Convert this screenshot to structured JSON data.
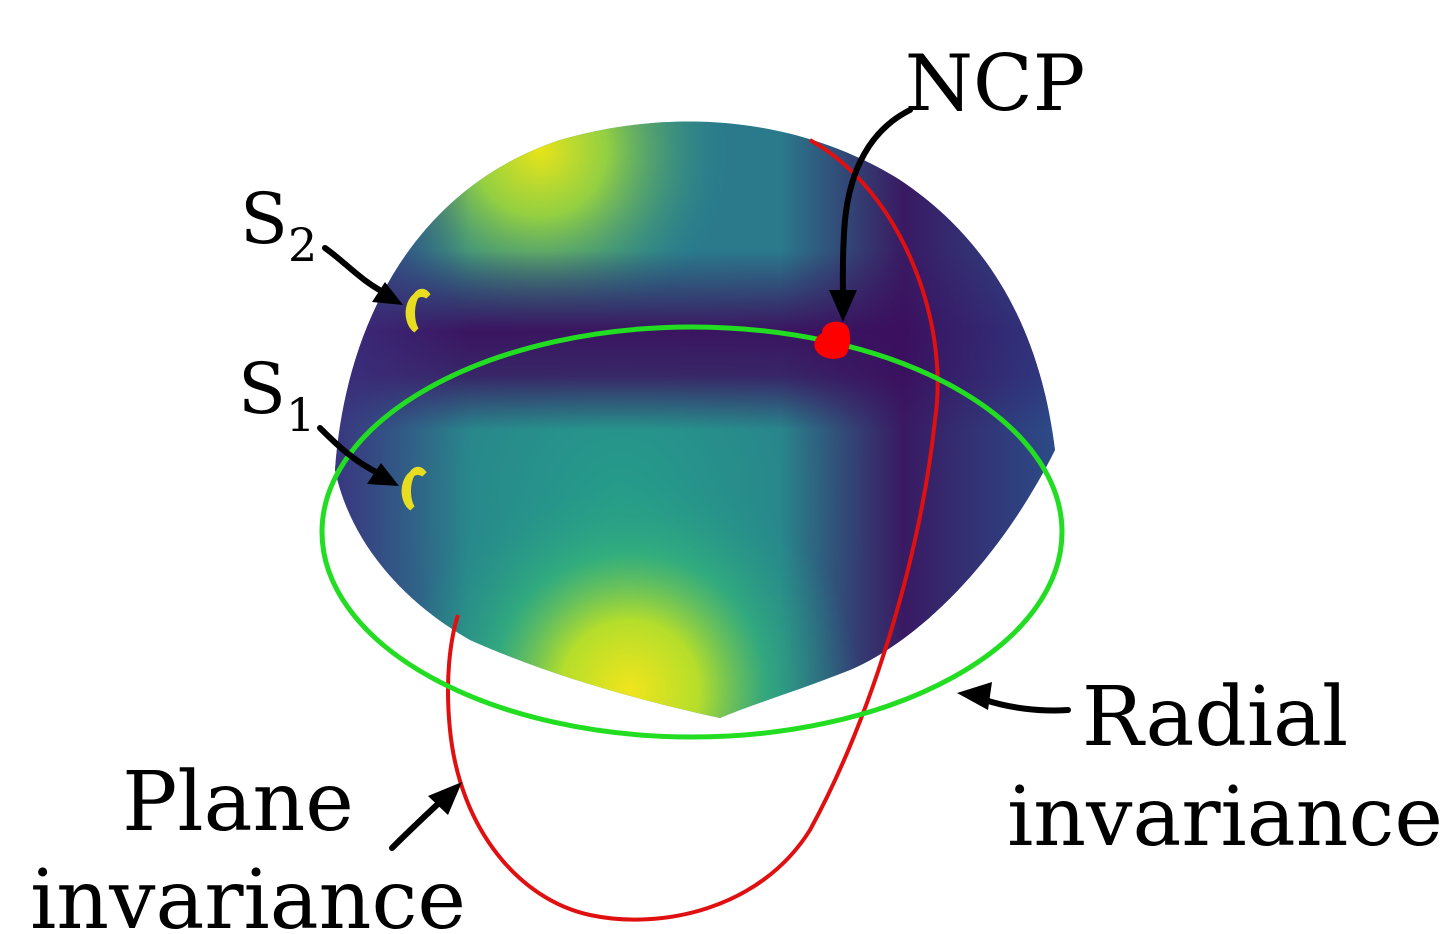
{
  "labels": {
    "s2": {
      "base": "S",
      "sub": "2"
    },
    "s1": {
      "base": "S",
      "sub": "1"
    },
    "ncp": "NCP",
    "radial": {
      "line1": "Radial",
      "line2": "invariance"
    },
    "plane": {
      "line1": "Plane",
      "line2": "invariance"
    }
  },
  "colors": {
    "radial_ring": "#22dd22",
    "plane_ring": "#e01010",
    "sample_points": "#e8dd20",
    "ncp_point": "#ff0000",
    "surface_dark": "#3b0f5e",
    "surface_mid": "#21918c",
    "surface_bright": "#e8e419",
    "arrows": "#000000"
  }
}
